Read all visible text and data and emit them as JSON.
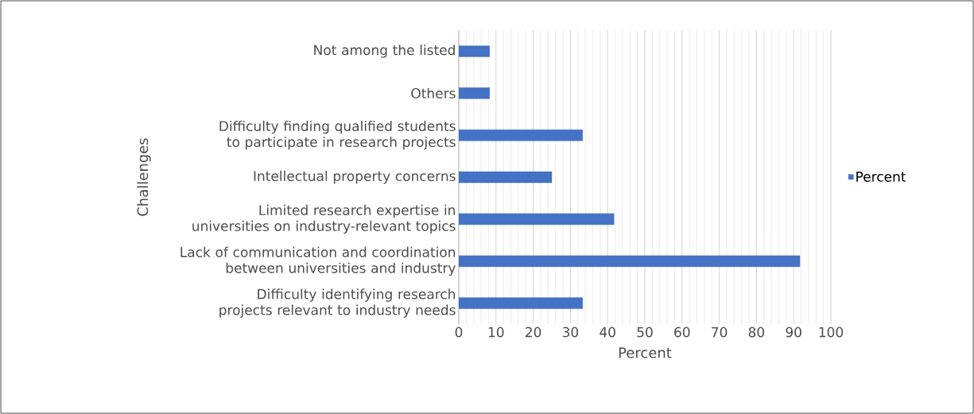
{
  "chart_data": {
    "type": "bar",
    "orientation": "horizontal",
    "xlabel": "Percent",
    "ylabel": "Challenges",
    "categories": [
      "Not among the listed",
      "Others",
      "Difficulty finding qualified students to participate in research projects",
      "Intellectual property concerns",
      "Limited research expertise in universities on industry-relevant topics",
      "Lack of communication and coordination between universities and industry",
      "Difficulty identifying research projects relevant to industry needs"
    ],
    "series": [
      {
        "name": "Percent",
        "color": "#4472c4",
        "values": [
          8.3,
          8.3,
          33.3,
          25,
          41.7,
          91.7,
          33.3
        ]
      }
    ],
    "xlim": [
      0,
      100
    ],
    "xticks": [
      0,
      10,
      20,
      30,
      40,
      50,
      60,
      70,
      80,
      90,
      100
    ],
    "grid": "x",
    "legend": "right"
  }
}
